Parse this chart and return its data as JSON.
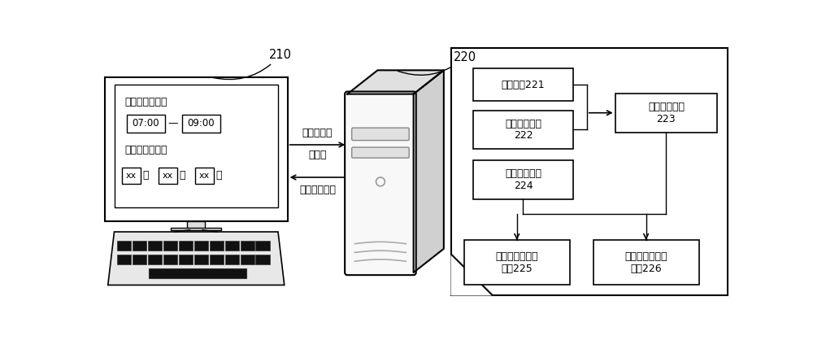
{
  "bg_color": "#ffffff",
  "font_family": "serif",
  "label_210": "210",
  "label_220": "220",
  "box221_text": "路网数据221",
  "box222_text": "行驶轨迹数据\n222",
  "box223_text": "路网行驶轨迹\n223",
  "box224_text": "区域边界数据\n224",
  "box225_text": "区域级车流迁徙\n数据225",
  "box226_text": "道路级车流迁徙\n数据226",
  "arrow_right_text1": "车流迁徙分",
  "arrow_right_text2": "析请求",
  "arrow_left_text": "车流迁徙数据",
  "text_qsr": "请输入分析时段",
  "text_qxz": "请选择分析区域",
  "time1": "07:00",
  "time2": "09:00",
  "dash": "—",
  "xx_sheng": "xx",
  "xx_shi": "xx",
  "xx_qu": "xx",
  "font_size": 9,
  "font_size_small": 8
}
